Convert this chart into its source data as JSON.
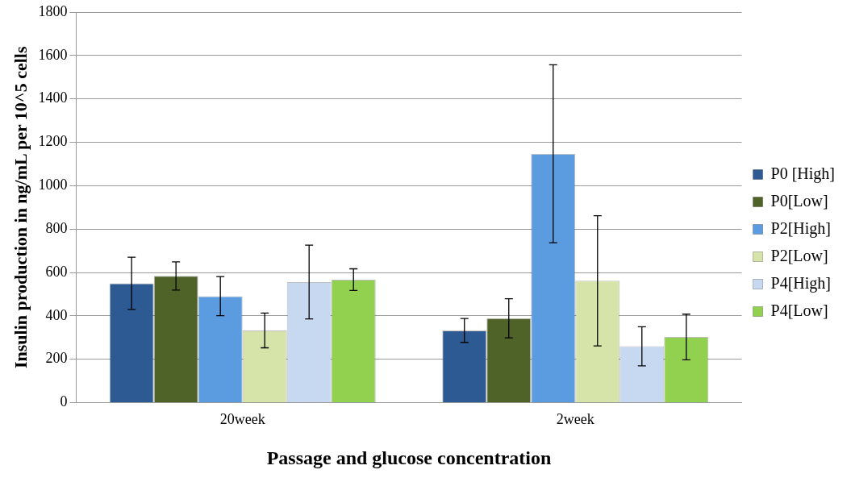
{
  "chart_data": {
    "type": "bar",
    "xlabel": "Passage and glucose concentration",
    "ylabel": "Insulin production in ng/mL per 10^5 cells",
    "categories": [
      "20week",
      "2week"
    ],
    "series": [
      {
        "name": "P0 [High]",
        "color": "#2e5a94",
        "values": [
          550,
          333
        ],
        "errors": [
          120,
          55
        ]
      },
      {
        "name": "P0[Low]",
        "color": "#4f6228",
        "values": [
          584,
          389
        ],
        "errors": [
          65,
          90
        ]
      },
      {
        "name": "P2[High]",
        "color": "#5b9be0",
        "values": [
          491,
          1147
        ],
        "errors": [
          90,
          410
        ]
      },
      {
        "name": "P2[Low]",
        "color": "#d7e4a9",
        "values": [
          333,
          562
        ],
        "errors": [
          80,
          300
        ]
      },
      {
        "name": "P4[High]",
        "color": "#c6d9f1",
        "values": [
          556,
          260
        ],
        "errors": [
          170,
          90
        ]
      },
      {
        "name": "P4[Low]",
        "color": "#92d050",
        "values": [
          567,
          303
        ],
        "errors": [
          50,
          105
        ]
      }
    ],
    "ylim": [
      0,
      1800
    ],
    "yticks": [
      0,
      200,
      400,
      600,
      800,
      1000,
      1200,
      1400,
      1600,
      1800
    ],
    "grid": "y",
    "legend": "right"
  }
}
